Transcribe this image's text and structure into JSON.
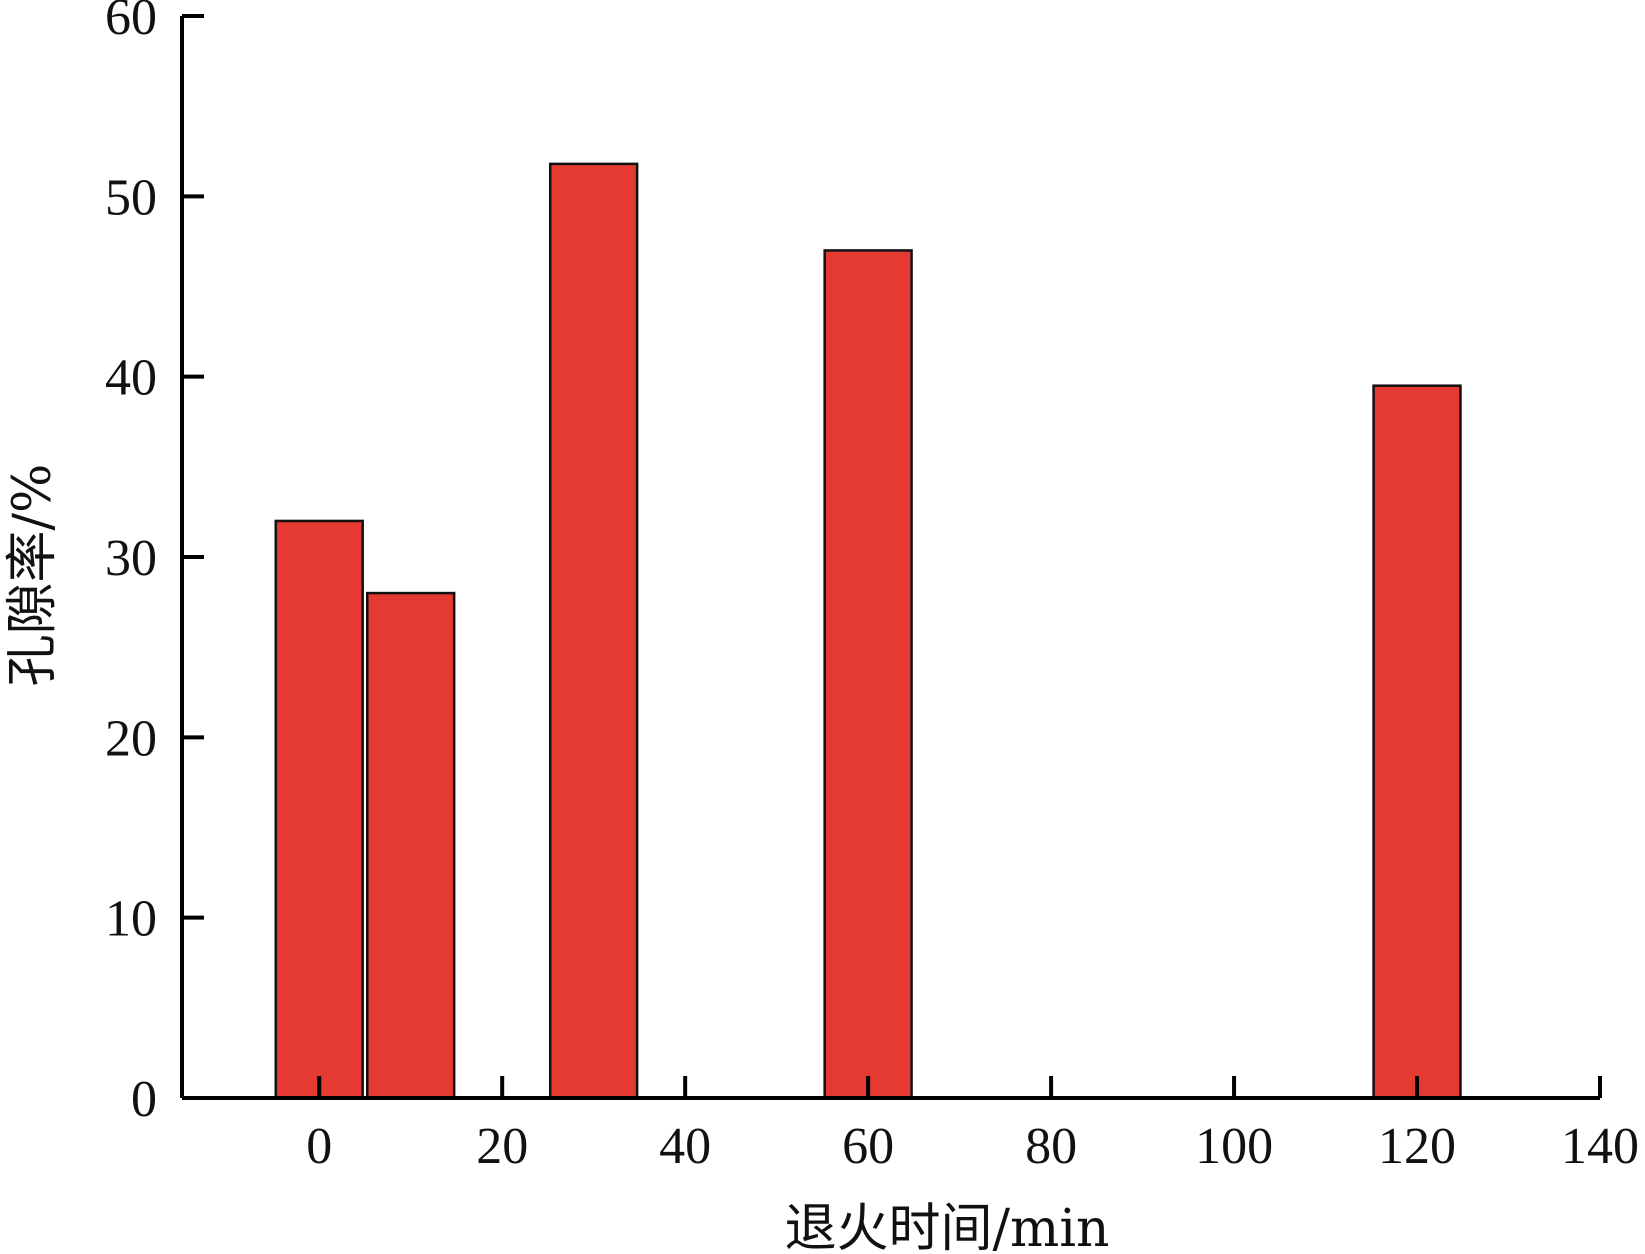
{
  "chart_data": {
    "type": "bar",
    "xlabel": "退火时间/min",
    "ylabel": "孔隙率/%",
    "xlim": [
      -15,
      140
    ],
    "ylim": [
      0,
      60
    ],
    "x_ticks": [
      0,
      20,
      40,
      60,
      80,
      100,
      120,
      140
    ],
    "y_ticks": [
      0,
      10,
      20,
      30,
      40,
      50,
      60
    ],
    "bar_width": 9.5,
    "bars": [
      {
        "x": 0,
        "value": 32.0
      },
      {
        "x": 10,
        "value": 28.0
      },
      {
        "x": 30,
        "value": 51.8
      },
      {
        "x": 60,
        "value": 47.0
      },
      {
        "x": 120,
        "value": 39.5
      }
    ],
    "bar_color": "#e43a32",
    "grid": false,
    "legend": "none"
  }
}
